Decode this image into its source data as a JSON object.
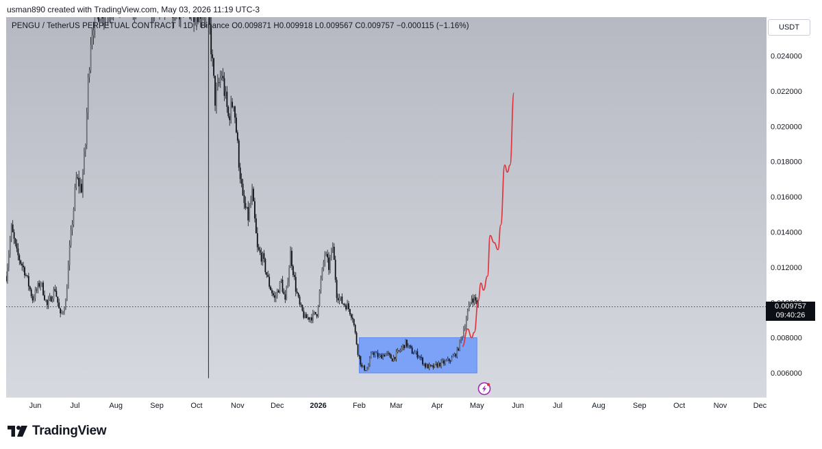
{
  "credit": "usman890 created with TradingView.com, May 03, 2026 11:19 UTC-3",
  "legend": {
    "symbol": "PENGU / TetherUS PERPETUAL CONTRACT · 1D · Binance",
    "ohlc": "O0.009871 H0.009918 L0.009567 C0.009757 −0.000115 (−1.16%)"
  },
  "unit_label": "USDT",
  "last_price": {
    "value": "0.009757",
    "countdown": "09:40:26"
  },
  "brand": "TradingView",
  "icons": {
    "event": "lightning-icon",
    "logo": "tradingview-logo-icon"
  },
  "colors": {
    "background": "#c7cad2",
    "candles": "#0d0f14",
    "box": "#7ba2f6",
    "projection": "#e3323c"
  },
  "chart_data": {
    "type": "candlestick",
    "x_axis": {
      "start_date": "2025-05-10",
      "end_date": "2026-12-06",
      "ticks": [
        {
          "date": "2025-06-01",
          "label": "Jun"
        },
        {
          "date": "2025-07-01",
          "label": "Jul"
        },
        {
          "date": "2025-08-01",
          "label": "Aug"
        },
        {
          "date": "2025-09-01",
          "label": "Sep"
        },
        {
          "date": "2025-10-01",
          "label": "Oct"
        },
        {
          "date": "2025-11-01",
          "label": "Nov"
        },
        {
          "date": "2025-12-01",
          "label": "Dec"
        },
        {
          "date": "2026-01-01",
          "label": "2026",
          "bold": true
        },
        {
          "date": "2026-02-01",
          "label": "Feb"
        },
        {
          "date": "2026-03-01",
          "label": "Mar"
        },
        {
          "date": "2026-04-01",
          "label": "Apr"
        },
        {
          "date": "2026-05-01",
          "label": "May"
        },
        {
          "date": "2026-06-01",
          "label": "Jun"
        },
        {
          "date": "2026-07-01",
          "label": "Jul"
        },
        {
          "date": "2026-08-01",
          "label": "Aug"
        },
        {
          "date": "2026-09-01",
          "label": "Sep"
        },
        {
          "date": "2026-10-01",
          "label": "Oct"
        },
        {
          "date": "2026-11-01",
          "label": "Nov"
        },
        {
          "date": "2026-12-01",
          "label": "Dec"
        }
      ]
    },
    "y_axis": {
      "range": [
        0.0046,
        0.0262
      ],
      "ticks": [
        "0.006000",
        "0.008000",
        "0.010000",
        "0.012000",
        "0.014000",
        "0.016000",
        "0.018000",
        "0.020000",
        "0.022000",
        "0.024000"
      ]
    },
    "last_close": 0.009757,
    "price_anchors": [
      [
        "2025-05-10",
        0.0115
      ],
      [
        "2025-05-14",
        0.0142
      ],
      [
        "2025-05-18",
        0.0128
      ],
      [
        "2025-05-24",
        0.0118
      ],
      [
        "2025-05-30",
        0.0102
      ],
      [
        "2025-06-05",
        0.0112
      ],
      [
        "2025-06-10",
        0.0098
      ],
      [
        "2025-06-16",
        0.0108
      ],
      [
        "2025-06-20",
        0.0092
      ],
      [
        "2025-06-24",
        0.01
      ],
      [
        "2025-06-27",
        0.013
      ],
      [
        "2025-07-02",
        0.017
      ],
      [
        "2025-07-06",
        0.0165
      ],
      [
        "2025-07-09",
        0.019
      ],
      [
        "2025-07-11",
        0.0225
      ],
      [
        "2025-07-13",
        0.025
      ],
      [
        "2025-07-16",
        0.0265
      ],
      [
        "2025-08-10",
        0.027
      ],
      [
        "2025-10-10",
        0.0265
      ],
      [
        "2025-10-12",
        0.0245
      ],
      [
        "2025-10-15",
        0.0215
      ],
      [
        "2025-10-20",
        0.023
      ],
      [
        "2025-10-25",
        0.0205
      ],
      [
        "2025-10-29",
        0.0215
      ],
      [
        "2025-11-02",
        0.018
      ],
      [
        "2025-11-05",
        0.0158
      ],
      [
        "2025-11-09",
        0.0148
      ],
      [
        "2025-11-12",
        0.0162
      ],
      [
        "2025-11-16",
        0.013
      ],
      [
        "2025-11-20",
        0.0125
      ],
      [
        "2025-11-25",
        0.011
      ],
      [
        "2025-11-29",
        0.0102
      ],
      [
        "2025-12-04",
        0.0112
      ],
      [
        "2025-12-07",
        0.01
      ],
      [
        "2025-12-11",
        0.0128
      ],
      [
        "2025-12-15",
        0.0108
      ],
      [
        "2025-12-18",
        0.0098
      ],
      [
        "2025-12-22",
        0.0091
      ],
      [
        "2025-12-27",
        0.0092
      ],
      [
        "2025-12-31",
        0.0094
      ],
      [
        "2026-01-03",
        0.0112
      ],
      [
        "2026-01-06",
        0.0128
      ],
      [
        "2026-01-09",
        0.012
      ],
      [
        "2026-01-12",
        0.0132
      ],
      [
        "2026-01-15",
        0.0105
      ],
      [
        "2026-01-19",
        0.01
      ],
      [
        "2026-01-23",
        0.0098
      ],
      [
        "2026-01-27",
        0.0092
      ],
      [
        "2026-01-31",
        0.0072
      ],
      [
        "2026-02-03",
        0.0063
      ],
      [
        "2026-02-07",
        0.0062
      ],
      [
        "2026-02-11",
        0.0072
      ],
      [
        "2026-02-16",
        0.0069
      ],
      [
        "2026-02-21",
        0.0071
      ],
      [
        "2026-02-26",
        0.0068
      ],
      [
        "2026-03-03",
        0.0072
      ],
      [
        "2026-03-08",
        0.0077
      ],
      [
        "2026-03-13",
        0.0072
      ],
      [
        "2026-03-18",
        0.007
      ],
      [
        "2026-03-23",
        0.0064
      ],
      [
        "2026-03-28",
        0.0063
      ],
      [
        "2026-04-02",
        0.0065
      ],
      [
        "2026-04-07",
        0.0066
      ],
      [
        "2026-04-12",
        0.0068
      ],
      [
        "2026-04-16",
        0.0072
      ],
      [
        "2026-04-20",
        0.0082
      ],
      [
        "2026-04-24",
        0.0094
      ],
      [
        "2026-04-27",
        0.0103
      ],
      [
        "2026-04-30",
        0.0101
      ],
      [
        "2026-05-03",
        0.009757
      ]
    ],
    "spikes": [
      {
        "date": "2025-10-10",
        "high": 0.0262,
        "low": 0.0057
      }
    ],
    "range_box": {
      "from": "2026-02-01",
      "to": "2026-05-01",
      "low": 0.006,
      "high": 0.008
    },
    "projection": [
      [
        "2026-04-20",
        0.0075
      ],
      [
        "2026-04-24",
        0.0085
      ],
      [
        "2026-04-27",
        0.008
      ],
      [
        "2026-04-29",
        0.0083
      ],
      [
        "2026-05-02",
        0.0101
      ],
      [
        "2026-05-04",
        0.0111
      ],
      [
        "2026-05-06",
        0.0107
      ],
      [
        "2026-05-09",
        0.0115
      ],
      [
        "2026-05-11",
        0.0138
      ],
      [
        "2026-05-14",
        0.0134
      ],
      [
        "2026-05-17",
        0.013
      ],
      [
        "2026-05-19",
        0.0144
      ],
      [
        "2026-05-22",
        0.0178
      ],
      [
        "2026-05-24",
        0.0174
      ],
      [
        "2026-05-26",
        0.0178
      ],
      [
        "2026-05-29",
        0.0219
      ]
    ]
  }
}
